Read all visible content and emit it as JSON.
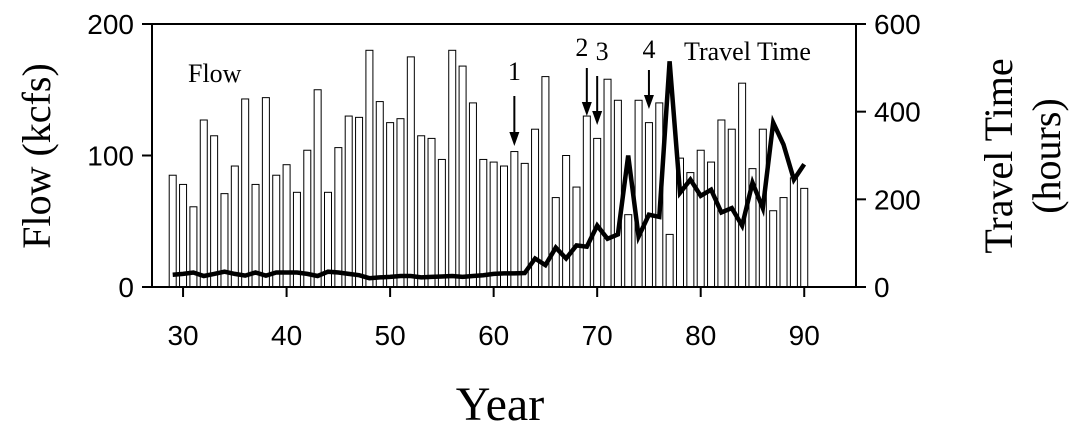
{
  "chart_data": {
    "type": "bar",
    "xlabel": "Year",
    "ylabel": "Flow (kcfs)",
    "y2label_line1": "Travel Time",
    "y2label_line2": "(hours)",
    "xlim": [
      27,
      95
    ],
    "ylim": [
      0,
      200
    ],
    "y2lim": [
      0,
      600
    ],
    "x_ticks": [
      30,
      40,
      50,
      60,
      70,
      80,
      90
    ],
    "y_ticks": [
      0,
      100,
      200
    ],
    "y2_ticks": [
      0,
      200,
      400,
      600
    ],
    "grid": false,
    "series": [
      {
        "name": "Flow",
        "type": "bar",
        "axis": "left",
        "x": [
          29,
          30,
          31,
          32,
          33,
          34,
          35,
          36,
          37,
          38,
          39,
          40,
          41,
          42,
          43,
          44,
          45,
          46,
          47,
          48,
          49,
          50,
          51,
          52,
          53,
          54,
          55,
          56,
          57,
          58,
          59,
          60,
          61,
          62,
          63,
          64,
          65,
          66,
          67,
          68,
          69,
          70,
          71,
          72,
          73,
          74,
          75,
          76,
          77,
          78,
          79,
          80,
          81,
          82,
          83,
          84,
          85,
          86,
          87,
          88,
          89,
          90
        ],
        "values": [
          85,
          78,
          61,
          127,
          115,
          71,
          92,
          143,
          78,
          144,
          85,
          93,
          72,
          104,
          150,
          72,
          106,
          130,
          129,
          180,
          141,
          125,
          128,
          175,
          115,
          113,
          97,
          180,
          168,
          140,
          97,
          95,
          92,
          103,
          94,
          120,
          160,
          68,
          100,
          76,
          130,
          113,
          158,
          142,
          55,
          142,
          125,
          140,
          40,
          98,
          87,
          104,
          95,
          127,
          120,
          155,
          90,
          120,
          58,
          68,
          83,
          75
        ]
      },
      {
        "name": "Travel Time",
        "type": "line",
        "axis": "right",
        "x": [
          29,
          30,
          31,
          32,
          33,
          34,
          35,
          36,
          37,
          38,
          39,
          40,
          41,
          42,
          43,
          44,
          45,
          46,
          47,
          48,
          49,
          50,
          51,
          52,
          53,
          54,
          55,
          56,
          57,
          58,
          59,
          60,
          61,
          62,
          63,
          64,
          65,
          66,
          67,
          68,
          69,
          70,
          71,
          72,
          73,
          74,
          75,
          76,
          77,
          78,
          79,
          80,
          81,
          82,
          83,
          84,
          85,
          86,
          87,
          88,
          89,
          90
        ],
        "values": [
          28,
          30,
          33,
          25,
          30,
          35,
          30,
          26,
          33,
          26,
          33,
          33,
          33,
          30,
          25,
          35,
          33,
          30,
          27,
          20,
          22,
          23,
          25,
          25,
          22,
          23,
          24,
          25,
          23,
          25,
          27,
          30,
          31,
          31,
          32,
          65,
          50,
          90,
          65,
          95,
          92,
          140,
          110,
          120,
          300,
          115,
          165,
          160,
          515,
          215,
          245,
          208,
          222,
          170,
          180,
          140,
          238,
          180,
          375,
          325,
          245,
          280
        ]
      }
    ],
    "annotations": [
      {
        "label": "1",
        "x": 62
      },
      {
        "label": "2",
        "x": 69
      },
      {
        "label": "3",
        "x": 70
      },
      {
        "label": "4",
        "x": 75
      }
    ]
  }
}
